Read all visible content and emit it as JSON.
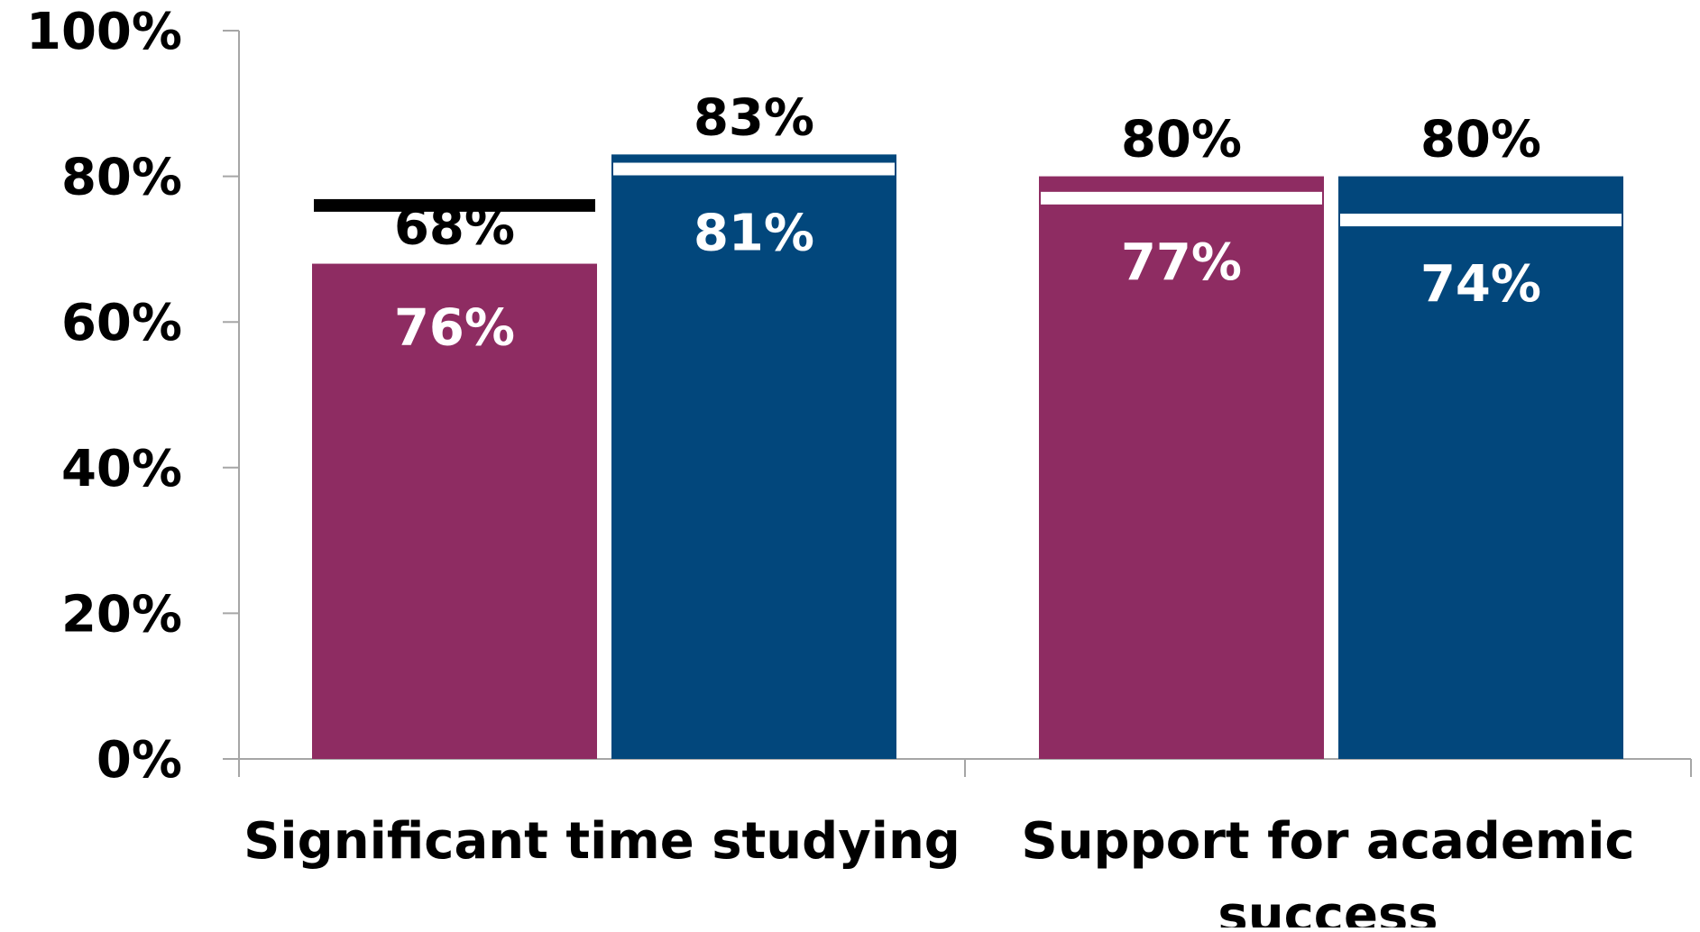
{
  "chart_data": {
    "type": "bar",
    "categories": [
      "Significant time studying",
      "Support for academic success"
    ],
    "category_label_lines": [
      [
        "Significant time studying"
      ],
      [
        "Support for academic",
        "success"
      ]
    ],
    "series": [
      {
        "values": [
          68,
          80
        ],
        "value_labels": [
          "68%",
          "80%"
        ],
        "marker_values": [
          76,
          77
        ],
        "marker_labels": [
          "76%",
          "77%"
        ]
      },
      {
        "values": [
          83,
          80
        ],
        "value_labels": [
          "83%",
          "80%"
        ],
        "marker_values": [
          81,
          74
        ],
        "marker_labels": [
          "81%",
          "74%"
        ]
      }
    ],
    "ylim": [
      0,
      100
    ],
    "yticks": [
      "0%",
      "20%",
      "40%",
      "60%",
      "80%",
      "100%"
    ],
    "grid": false,
    "legend": "none",
    "colors": {
      "series": [
        "#8e2c62",
        "#02477c"
      ],
      "marker_outside": "#000000",
      "marker_inside": "#ffffff",
      "text": "#000000",
      "text_inside": "#ffffff",
      "axis": "#a6a6a6"
    }
  }
}
